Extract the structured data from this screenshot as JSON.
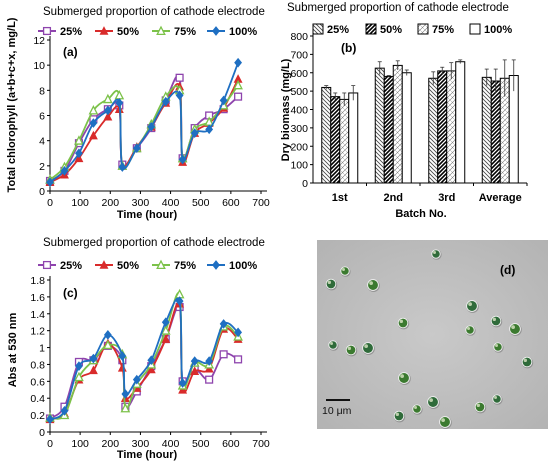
{
  "colors": {
    "s25": "#8e44ad",
    "s50": "#d92b2b",
    "s75": "#7cc24a",
    "s100": "#1f6fc2"
  },
  "chart_data": [
    {
      "panel": "(a)",
      "type": "line",
      "title": "Submerged proportion of cathode electrode",
      "xlabel": "Time (hour)",
      "ylabel": "Total chlorophyll (a+b+c+x, mg/L)",
      "xlim": [
        0,
        700
      ],
      "ylim": [
        0,
        12
      ],
      "xticks": [
        "0",
        "100",
        "200",
        "300",
        "400",
        "500",
        "600",
        "700"
      ],
      "yticks": [
        "0",
        "2",
        "4",
        "6",
        "8",
        "10",
        "12"
      ],
      "legend": "top",
      "series": [
        {
          "name": "25%",
          "marker": "square-open",
          "color": "#8e44ad",
          "x": [
            0,
            48,
            96,
            144,
            192,
            230,
            240,
            288,
            336,
            384,
            430,
            440,
            480,
            528,
            576,
            624
          ],
          "y": [
            0.8,
            1.6,
            3.8,
            5.7,
            6.5,
            6.8,
            2.1,
            3.4,
            5.0,
            7.2,
            9.0,
            2.6,
            5.0,
            6.0,
            6.5,
            7.5
          ]
        },
        {
          "name": "50%",
          "marker": "triangle",
          "color": "#d92b2b",
          "x": [
            0,
            48,
            96,
            144,
            192,
            230,
            240,
            288,
            336,
            384,
            430,
            440,
            480,
            528,
            576,
            624
          ],
          "y": [
            0.7,
            1.3,
            2.6,
            4.4,
            5.9,
            6.5,
            2.0,
            3.5,
            5.1,
            7.0,
            8.3,
            2.3,
            4.6,
            5.4,
            6.6,
            8.9
          ]
        },
        {
          "name": "75%",
          "marker": "triangle-open",
          "color": "#7cc24a",
          "x": [
            0,
            48,
            96,
            144,
            192,
            230,
            240,
            288,
            336,
            384,
            430,
            440,
            480,
            528,
            576,
            624
          ],
          "y": [
            0.9,
            1.9,
            4.0,
            6.4,
            7.3,
            7.6,
            2.0,
            3.4,
            5.3,
            7.5,
            8.0,
            2.6,
            4.9,
            5.5,
            6.8,
            8.4
          ]
        },
        {
          "name": "100%",
          "marker": "diamond",
          "color": "#1f6fc2",
          "x": [
            0,
            48,
            96,
            144,
            192,
            230,
            240,
            288,
            336,
            384,
            430,
            440,
            480,
            528,
            576,
            624
          ],
          "y": [
            0.7,
            1.6,
            3.0,
            5.4,
            6.4,
            7.0,
            1.9,
            3.4,
            5.1,
            7.1,
            7.6,
            2.5,
            4.6,
            4.9,
            7.2,
            10.2
          ]
        }
      ]
    },
    {
      "panel": "(b)",
      "type": "bar",
      "title": "Submerged proportion of cathode electrode",
      "xlabel": "Batch No.",
      "ylabel": "Dry biomass (mg/L)",
      "ylim": [
        0,
        800
      ],
      "yticks": [
        "0",
        "100",
        "200",
        "300",
        "400",
        "500",
        "600",
        "700",
        "800"
      ],
      "categories": [
        "1st",
        "2nd",
        "3rd",
        "Average"
      ],
      "legend": "top",
      "series": [
        {
          "name": "25%",
          "pattern": "diag-back",
          "values": [
            520,
            625,
            570,
            575
          ],
          "errors": [
            10,
            35,
            35,
            45
          ]
        },
        {
          "name": "50%",
          "pattern": "diag-fwd-bold",
          "values": [
            470,
            580,
            610,
            555
          ],
          "errors": [
            20,
            5,
            20,
            65
          ]
        },
        {
          "name": "75%",
          "pattern": "diag-light",
          "values": [
            455,
            640,
            610,
            570
          ],
          "errors": [
            35,
            25,
            45,
            100
          ]
        },
        {
          "name": "100%",
          "pattern": "empty",
          "values": [
            490,
            600,
            660,
            585
          ],
          "errors": [
            40,
            15,
            10,
            85
          ]
        }
      ]
    },
    {
      "panel": "(c)",
      "type": "line",
      "title": "Submerged proportion of cathode electrode",
      "xlabel": "Time (hour)",
      "ylabel": "Abs at 530 nm",
      "xlim": [
        0,
        700
      ],
      "ylim": [
        0,
        1.8
      ],
      "xticks": [
        "0",
        "100",
        "200",
        "300",
        "400",
        "500",
        "600",
        "700"
      ],
      "yticks": [
        "0",
        "0.2",
        "0.4",
        "0.6",
        "0.8",
        "1",
        "1.2",
        "1.4",
        "1.6",
        "1.8"
      ],
      "legend": "top",
      "series": [
        {
          "name": "25%",
          "marker": "square-open",
          "color": "#8e44ad",
          "x": [
            0,
            48,
            96,
            144,
            192,
            240,
            250,
            288,
            336,
            384,
            430,
            440,
            480,
            528,
            576,
            624
          ],
          "y": [
            0.16,
            0.3,
            0.83,
            0.85,
            1.02,
            0.85,
            0.3,
            0.48,
            0.78,
            1.1,
            1.48,
            0.6,
            0.75,
            0.62,
            0.92,
            0.86
          ]
        },
        {
          "name": "50%",
          "marker": "triangle",
          "color": "#d92b2b",
          "x": [
            0,
            48,
            96,
            144,
            192,
            240,
            250,
            288,
            336,
            384,
            430,
            440,
            480,
            528,
            576,
            624
          ],
          "y": [
            0.15,
            0.22,
            0.62,
            0.73,
            1.05,
            0.76,
            0.4,
            0.52,
            0.74,
            1.1,
            1.52,
            0.5,
            0.72,
            0.75,
            1.22,
            1.1
          ]
        },
        {
          "name": "75%",
          "marker": "triangle-open",
          "color": "#7cc24a",
          "x": [
            0,
            48,
            96,
            144,
            192,
            240,
            250,
            288,
            336,
            384,
            430,
            440,
            480,
            528,
            576,
            624
          ],
          "y": [
            0.17,
            0.2,
            0.65,
            0.85,
            1.03,
            0.92,
            0.28,
            0.57,
            0.8,
            1.2,
            1.63,
            0.55,
            0.82,
            0.8,
            1.25,
            1.13
          ]
        },
        {
          "name": "100%",
          "marker": "diamond",
          "color": "#1f6fc2",
          "x": [
            0,
            48,
            96,
            144,
            192,
            240,
            250,
            288,
            336,
            384,
            430,
            440,
            480,
            528,
            576,
            624
          ],
          "y": [
            0.15,
            0.25,
            0.78,
            0.87,
            1.15,
            0.9,
            0.45,
            0.62,
            0.85,
            1.3,
            1.55,
            0.58,
            0.84,
            0.84,
            1.28,
            1.18
          ]
        }
      ]
    }
  ],
  "micrograph": {
    "label": "(d)",
    "scale_bar": "10 μm"
  }
}
